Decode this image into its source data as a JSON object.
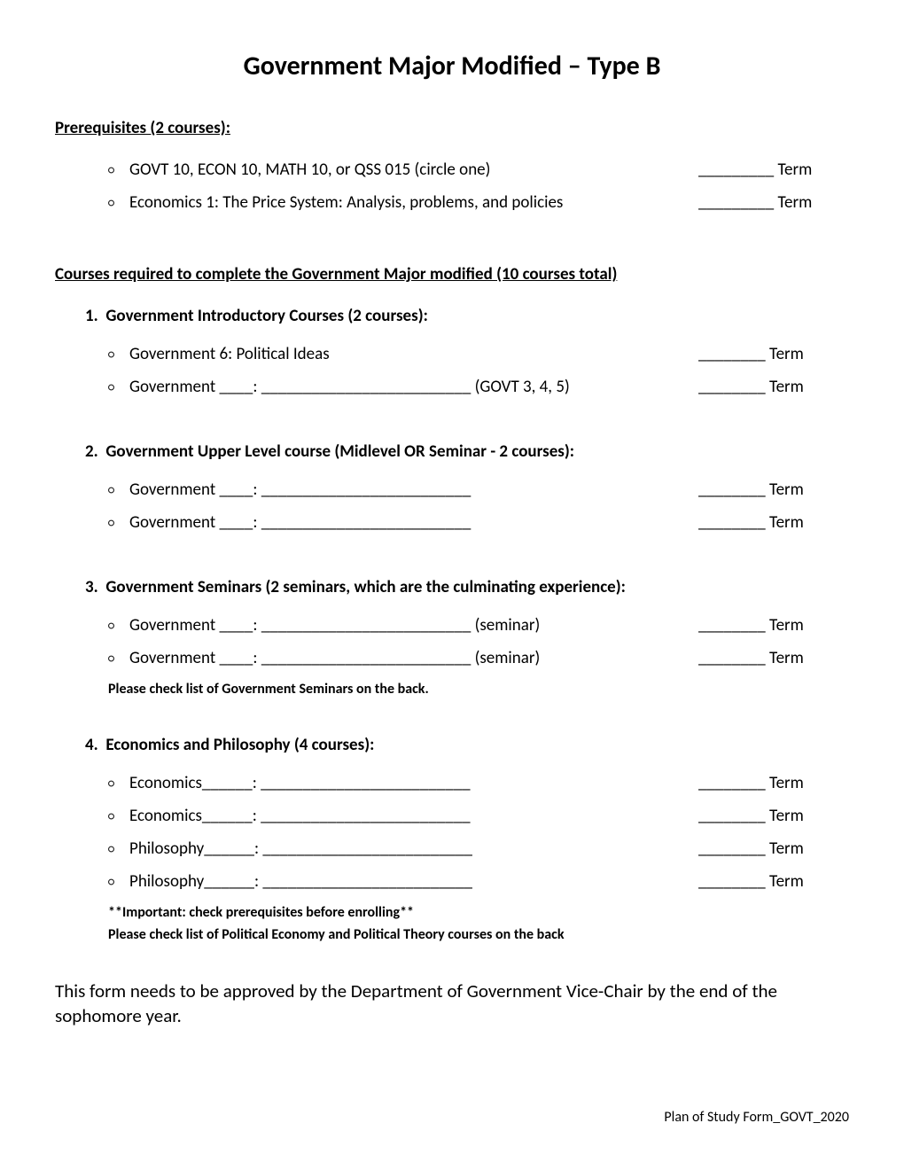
{
  "title": "Government Major Modified – Type B",
  "prereq_header": "Prerequisites (2 courses):",
  "prereq_items": [
    {
      "text": "GOVT 10, ECON 10, MATH 10, or QSS 015 (circle one)",
      "term": "_________ Term"
    },
    {
      "text": "Economics 1: The Price System: Analysis, problems, and policies",
      "term": "_________ Term"
    }
  ],
  "required_header": "Courses required to complete the Government Major modified (10 courses total)",
  "sections": [
    {
      "num": "1.",
      "heading": "Government Introductory Courses (2 courses):",
      "items": [
        {
          "text": "Government 6:  Political Ideas",
          "term": "________ Term"
        },
        {
          "text": "Government ____: _________________________ (GOVT 3, 4, 5)",
          "term": "________ Term"
        }
      ],
      "note": null
    },
    {
      "num": "2.",
      "heading": "Government Upper Level course (Midlevel OR Seminar - 2 courses):",
      "items": [
        {
          "text": "Government ____: _________________________",
          "term": "________ Term"
        },
        {
          "text": "Government ____: _________________________",
          "term": "________ Term"
        }
      ],
      "note": null
    },
    {
      "num": "3.",
      "heading": "Government Seminars (2 seminars, which are the culminating experience):",
      "items": [
        {
          "text": "Government ____: _________________________  (seminar)",
          "term": "________ Term"
        },
        {
          "text": "Government ____: _________________________  (seminar)",
          "term": "________ Term"
        }
      ],
      "note": "Please check list of Government Seminars on the back."
    },
    {
      "num": "4.",
      "heading": "Economics and Philosophy (4 courses):",
      "items": [
        {
          "text": "Economics______: _________________________",
          "term": "________ Term"
        },
        {
          "text": "Economics______: _________________________",
          "term": "________ Term"
        },
        {
          "text": "Philosophy______: _________________________",
          "term": "________ Term"
        },
        {
          "text": "Philosophy______: _________________________",
          "term": "________ Term"
        }
      ],
      "note": "**Important: check prerequisites before enrolling**",
      "note2": "Please check list of Political Economy and Political Theory courses on the back"
    }
  ],
  "closing": "This form needs to be approved by the Department of Government Vice-Chair by the end of the sophomore year.",
  "footer": "Plan of Study Form_GOVT_2020",
  "bullet_char": "○"
}
